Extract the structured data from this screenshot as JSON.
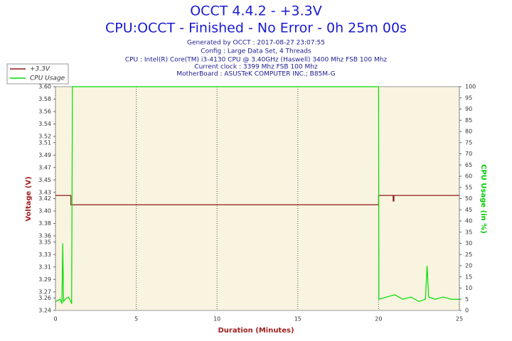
{
  "chart_data": {
    "type": "line",
    "title": "OCCT 4.4.2 - +3.3V",
    "subtitle": "CPU:OCCT - Finished - No Error - 0h 25m 00s",
    "info": [
      "Generated by OCCT : 2017-08-27 23:07:55",
      "Config : Large Data Set, 4 Threads",
      "CPU : Intel(R) Core(TM) i3-4130 CPU @ 3.40GHz (Haswell) 3400 Mhz FSB 100 Mhz",
      "Current clock : 3399 Mhz FSB 100 Mhz",
      "MotherBoard : ASUSTeK COMPUTER INC.; B85M-G"
    ],
    "xlabel": "Duration (Minutes)",
    "ylabel": "Voltage (V)",
    "y2label": "CPU Usage (in %)",
    "xlim": [
      0,
      25
    ],
    "xticks": [
      0,
      5,
      10,
      15,
      20,
      25
    ],
    "ylim": [
      3.24,
      3.6
    ],
    "yticks": [
      3.24,
      3.26,
      3.27,
      3.29,
      3.31,
      3.33,
      3.35,
      3.36,
      3.38,
      {
        "value": 3.4,
        "label": "3.40"
      },
      3.42,
      3.43,
      3.45,
      3.47,
      3.49,
      3.51,
      3.52,
      3.54,
      3.56,
      3.58,
      {
        "value": 3.6,
        "label": "3.60"
      }
    ],
    "y2lim": [
      0,
      100
    ],
    "y2ticks": [
      0,
      5,
      10,
      15,
      20,
      25,
      30,
      35,
      40,
      45,
      50,
      55,
      60,
      65,
      70,
      75,
      80,
      85,
      90,
      95,
      100
    ],
    "grid": true,
    "legend": "top-left",
    "series": [
      {
        "name": "+3.3V",
        "color": "#8b1a1a",
        "x": [
          0,
          0.95,
          0.95,
          20,
          20,
          20.9,
          20.9,
          20.95,
          20.95,
          25
        ],
        "values": [
          3.425,
          3.425,
          3.41,
          3.41,
          3.425,
          3.425,
          3.416,
          3.416,
          3.425,
          3.425
        ]
      },
      {
        "name": "CPU Usage",
        "color": "#00dd00",
        "axis": "y2",
        "x": [
          0,
          0.3,
          0.4,
          0.45,
          0.5,
          0.6,
          0.8,
          0.95,
          1.0,
          1.05,
          20,
          20.02,
          20.5,
          21,
          21.5,
          22,
          22.5,
          22.9,
          23,
          23.1,
          23.5,
          24,
          24.5,
          25
        ],
        "values": [
          4,
          5,
          3,
          30,
          4,
          5,
          6,
          4,
          3,
          100,
          100,
          5,
          6,
          7,
          5,
          6,
          4,
          5,
          20,
          6,
          5,
          6,
          5,
          5
        ]
      }
    ]
  }
}
